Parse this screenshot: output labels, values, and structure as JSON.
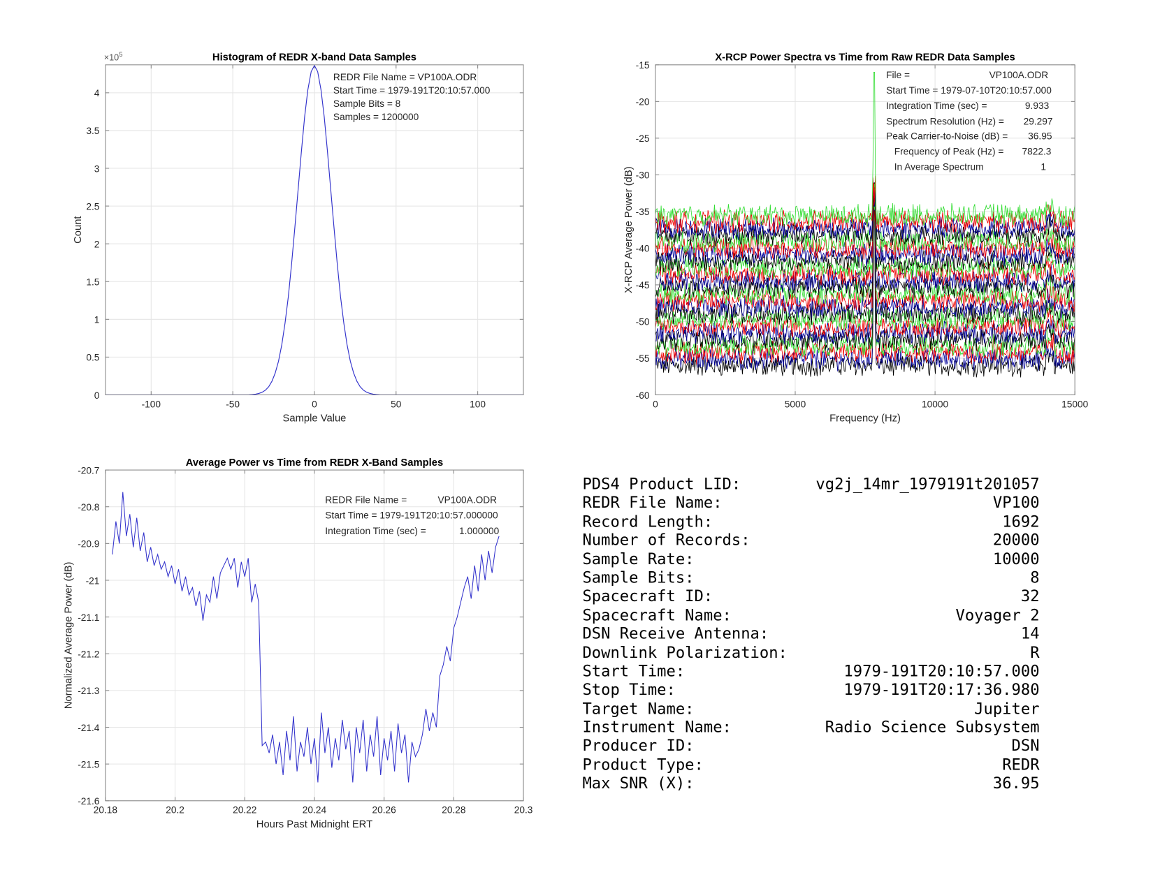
{
  "chart_data": [
    {
      "type": "line",
      "title": "Histogram of REDR X-band Data Samples",
      "xlabel": "Sample Value",
      "ylabel": "Count",
      "y_exponent_label": "×10",
      "y_exponent": "5",
      "xlim": [
        -128,
        128
      ],
      "ylim": [
        0,
        4.37
      ],
      "y_scale_factor": 100000,
      "xticks": [
        -100,
        -50,
        0,
        50,
        100
      ],
      "xtick_labels": [
        "-100",
        "-50",
        "0",
        "50",
        "100"
      ],
      "yticks": [
        0,
        0.5,
        1,
        1.5,
        2,
        2.5,
        3,
        3.5,
        4
      ],
      "ytick_labels": [
        "0",
        "0.5",
        "1",
        "1.5",
        "2",
        "2.5",
        "3",
        "3.5",
        "4"
      ],
      "grid": true,
      "line_color": "#3333cc",
      "series": [
        {
          "x": [
            -128,
            -44,
            -40,
            -38,
            -36,
            -34,
            -32,
            -30,
            -28,
            -26,
            -24,
            -22,
            -20,
            -18,
            -16,
            -14,
            -12,
            -10,
            -8,
            -6,
            -4,
            -2,
            0,
            2,
            4,
            6,
            8,
            10,
            12,
            14,
            16,
            18,
            20,
            22,
            24,
            26,
            28,
            30,
            32,
            34,
            36,
            38,
            40,
            44,
            128
          ],
          "y": [
            0,
            0.0001,
            0.0023,
            0.0048,
            0.0097,
            0.0188,
            0.035,
            0.0627,
            0.108,
            0.18,
            0.289,
            0.446,
            0.662,
            0.947,
            1.3,
            1.73,
            2.21,
            2.72,
            3.22,
            3.68,
            4.04,
            4.28,
            4.36,
            4.28,
            4.04,
            3.68,
            3.22,
            2.72,
            2.21,
            1.73,
            1.3,
            0.947,
            0.662,
            0.446,
            0.289,
            0.18,
            0.108,
            0.0627,
            0.035,
            0.0188,
            0.0097,
            0.0048,
            0.0023,
            0.0001,
            0
          ]
        }
      ],
      "annotations": [
        "REDR File Name = VP100A.ODR",
        "Start Time = 1979-191T20:10:57.000",
        "Sample Bits = 8",
        "Samples = 1200000"
      ]
    },
    {
      "type": "line",
      "title": "X-RCP Power Spectra vs Time from Raw REDR Data Samples",
      "xlabel": "Frequency (Hz)",
      "ylabel": "X-RCP Average Power (dB)",
      "xlim": [
        0,
        15000
      ],
      "ylim": [
        -60,
        -15
      ],
      "xticks": [
        0,
        5000,
        10000,
        15000
      ],
      "xtick_labels": [
        "0",
        "5000",
        "10000",
        "15000"
      ],
      "yticks": [
        -60,
        -55,
        -50,
        -45,
        -40,
        -35,
        -30,
        -25,
        -20,
        -15
      ],
      "ytick_labels": [
        "-60",
        "-55",
        "-50",
        "-45",
        "-40",
        "-35",
        "-30",
        "-25",
        "-20",
        "-15"
      ],
      "grid": true,
      "traces": {
        "count": 24,
        "top_level_db": -35.5,
        "bottom_level_db": -56,
        "colors": [
          "#33dd33",
          "#ee0000",
          "#000099",
          "#000000"
        ]
      },
      "carrier_peak": {
        "freq_hz": 7822.3,
        "max_db": -16
      },
      "annotations": [
        {
          "label": "File =",
          "value": "VP100A.ODR"
        },
        {
          "label": "Start Time = 1979-07-10T20:10:57.000",
          "value": ""
        },
        {
          "label": "Integration Time (sec) =",
          "value": "9.933"
        },
        {
          "label": "Spectrum Resolution (Hz) =",
          "value": "29.297"
        },
        {
          "label": "Peak Carrier-to-Noise (dB) =",
          "value": "36.95"
        },
        {
          "label": "Frequency of Peak (Hz) =",
          "value": "7822.3"
        },
        {
          "label": "In Average Spectrum",
          "value": "1"
        }
      ]
    },
    {
      "type": "line",
      "title": "Average Power vs Time from REDR X-Band Samples",
      "xlabel": "Hours Past Midnight ERT",
      "ylabel": "Normalized Average Power (dB)",
      "xlim": [
        20.18,
        20.3
      ],
      "ylim": [
        -21.6,
        -20.7
      ],
      "xticks": [
        20.18,
        20.2,
        20.22,
        20.24,
        20.26,
        20.28,
        20.3
      ],
      "xtick_labels": [
        "20.18",
        "20.2",
        "20.22",
        "20.24",
        "20.26",
        "20.28",
        "20.3"
      ],
      "yticks": [
        -21.6,
        -21.5,
        -21.4,
        -21.3,
        -21.2,
        -21.1,
        -21,
        -20.9,
        -20.8,
        -20.7
      ],
      "ytick_labels": [
        "-21.6",
        "-21.5",
        "-21.4",
        "-21.3",
        "-21.2",
        "-21.1",
        "-21",
        "-20.9",
        "-20.8",
        "-20.7"
      ],
      "grid": true,
      "line_color": "#3333cc",
      "series": [
        {
          "x_start": 20.182,
          "x_step": 0.001,
          "y": [
            -20.93,
            -20.84,
            -20.9,
            -20.76,
            -20.88,
            -20.82,
            -20.91,
            -20.83,
            -20.92,
            -20.87,
            -20.95,
            -20.91,
            -20.96,
            -20.93,
            -20.97,
            -20.95,
            -20.99,
            -20.96,
            -21.01,
            -20.97,
            -21.03,
            -20.99,
            -21.04,
            -21.02,
            -21.07,
            -21.03,
            -21.11,
            -21.04,
            -21.06,
            -20.99,
            -21.05,
            -20.98,
            -20.96,
            -20.94,
            -20.97,
            -20.94,
            -21.02,
            -20.95,
            -20.99,
            -20.94,
            -21.06,
            -21.01,
            -21.06,
            -21.45,
            -21.44,
            -21.47,
            -21.42,
            -21.5,
            -21.44,
            -21.53,
            -21.41,
            -21.49,
            -21.37,
            -21.52,
            -21.44,
            -21.48,
            -21.4,
            -21.5,
            -21.43,
            -21.55,
            -21.36,
            -21.47,
            -21.4,
            -21.51,
            -21.43,
            -21.49,
            -21.38,
            -21.46,
            -21.41,
            -21.55,
            -21.4,
            -21.47,
            -21.38,
            -21.52,
            -21.42,
            -21.48,
            -21.37,
            -21.53,
            -21.43,
            -21.49,
            -21.41,
            -21.52,
            -21.39,
            -21.47,
            -21.42,
            -21.55,
            -21.44,
            -21.48,
            -21.46,
            -21.42,
            -21.35,
            -21.41,
            -21.36,
            -21.4,
            -21.26,
            -21.23,
            -21.18,
            -21.22,
            -21.13,
            -21.1,
            -21.06,
            -21.02,
            -20.99,
            -21.05,
            -20.96,
            -21.03,
            -20.93,
            -21.0,
            -20.92,
            -20.98,
            -20.91,
            -20.88
          ]
        }
      ],
      "annotations": [
        {
          "label": "REDR File Name =",
          "value": "VP100A.ODR"
        },
        {
          "label": "Start Time = 1979-191T20:10:57.000000",
          "value": ""
        },
        {
          "label": "Integration Time (sec) =",
          "value": "1.000000"
        }
      ]
    }
  ],
  "product_info": [
    {
      "label": "PDS4 Product LID:",
      "value": "vg2j_14mr_1979191t201057"
    },
    {
      "label": "REDR File Name:",
      "value": "VP100"
    },
    {
      "label": "Record Length:",
      "value": "1692"
    },
    {
      "label": "Number of Records:",
      "value": "20000"
    },
    {
      "label": "Sample Rate:",
      "value": "10000"
    },
    {
      "label": "Sample Bits:",
      "value": "8"
    },
    {
      "label": "Spacecraft ID:",
      "value": "32"
    },
    {
      "label": "Spacecraft Name:",
      "value": "Voyager 2"
    },
    {
      "label": "DSN Receive Antenna:",
      "value": "14"
    },
    {
      "label": "Downlink Polarization:",
      "value": "R"
    },
    {
      "label": "Start Time:",
      "value": "1979-191T20:10:57.000"
    },
    {
      "label": "Stop Time:",
      "value": "1979-191T20:17:36.980"
    },
    {
      "label": "Target Name:",
      "value": "Jupiter"
    },
    {
      "label": "Instrument Name:",
      "value": "Radio Science Subsystem"
    },
    {
      "label": "Producer ID:",
      "value": "DSN"
    },
    {
      "label": "Product Type:",
      "value": "REDR"
    },
    {
      "label": "Max SNR (X):",
      "value": "36.95"
    }
  ]
}
